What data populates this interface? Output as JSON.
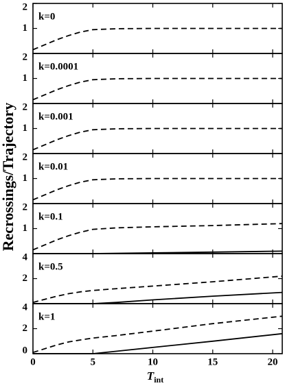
{
  "ylabel": "Recrossings/Trajectory",
  "xlabel": {
    "main": "T",
    "sub": "int"
  },
  "xlim": [
    0,
    20.8
  ],
  "xticks": [
    0,
    5,
    10,
    15,
    20
  ],
  "chart_data": [
    {
      "type": "line",
      "title": "k=0",
      "ylim": [
        0,
        2
      ],
      "yticks": [
        1,
        2
      ],
      "series": [
        {
          "style": "dashed",
          "color": "#000000",
          "x": [
            0,
            1,
            2,
            3,
            4,
            5,
            7,
            10,
            15,
            20.8
          ],
          "values": [
            0.15,
            0.35,
            0.55,
            0.72,
            0.86,
            0.95,
            0.99,
            1.0,
            1.0,
            1.0
          ]
        }
      ]
    },
    {
      "type": "line",
      "title": "k=0.0001",
      "ylim": [
        0,
        2
      ],
      "yticks": [
        1,
        2
      ],
      "series": [
        {
          "style": "dashed",
          "color": "#000000",
          "x": [
            0,
            1,
            2,
            3,
            4,
            5,
            7,
            10,
            15,
            20.8
          ],
          "values": [
            0.15,
            0.35,
            0.55,
            0.72,
            0.86,
            0.95,
            0.99,
            1.0,
            1.0,
            1.0
          ]
        }
      ]
    },
    {
      "type": "line",
      "title": "k=0.001",
      "ylim": [
        0,
        2
      ],
      "yticks": [
        1,
        2
      ],
      "series": [
        {
          "style": "dashed",
          "color": "#000000",
          "x": [
            0,
            1,
            2,
            3,
            4,
            5,
            7,
            10,
            15,
            20.8
          ],
          "values": [
            0.15,
            0.35,
            0.55,
            0.72,
            0.86,
            0.95,
            0.99,
            1.0,
            1.0,
            1.0
          ]
        }
      ]
    },
    {
      "type": "line",
      "title": "k=0.01",
      "ylim": [
        0,
        2
      ],
      "yticks": [
        1,
        2
      ],
      "series": [
        {
          "style": "dashed",
          "color": "#000000",
          "x": [
            0,
            1,
            2,
            3,
            4,
            5,
            7,
            10,
            15,
            20.8
          ],
          "values": [
            0.15,
            0.35,
            0.55,
            0.72,
            0.86,
            0.95,
            0.99,
            1.0,
            1.0,
            1.0
          ]
        }
      ]
    },
    {
      "type": "line",
      "title": "k=0.1",
      "ylim": [
        0,
        2
      ],
      "yticks": [
        1,
        2
      ],
      "series": [
        {
          "style": "dashed",
          "color": "#000000",
          "x": [
            0,
            1,
            2,
            3,
            4,
            5,
            7,
            10,
            15,
            20.8
          ],
          "values": [
            0.15,
            0.35,
            0.55,
            0.72,
            0.86,
            0.97,
            1.03,
            1.07,
            1.12,
            1.2
          ]
        },
        {
          "style": "solid",
          "color": "#000000",
          "x": [
            0,
            5,
            10,
            15,
            20.8
          ],
          "values": [
            0,
            0,
            0.03,
            0.06,
            0.1
          ]
        }
      ]
    },
    {
      "type": "line",
      "title": "k=0.5",
      "ylim": [
        0,
        4
      ],
      "yticks": [
        2,
        4
      ],
      "series": [
        {
          "style": "dashed",
          "color": "#000000",
          "x": [
            0,
            1,
            2,
            3,
            4,
            5,
            7,
            10,
            15,
            20.8
          ],
          "values": [
            0.1,
            0.35,
            0.6,
            0.8,
            0.95,
            1.05,
            1.2,
            1.4,
            1.75,
            2.2
          ]
        },
        {
          "style": "solid",
          "color": "#000000",
          "x": [
            0,
            5,
            7,
            10,
            15,
            20.8
          ],
          "values": [
            0,
            0,
            0.1,
            0.3,
            0.6,
            0.9
          ]
        }
      ]
    },
    {
      "type": "line",
      "title": "k=1",
      "ylim": [
        0,
        4
      ],
      "yticks": [
        0,
        2,
        4
      ],
      "series": [
        {
          "style": "dashed",
          "color": "#000000",
          "x": [
            0,
            1,
            2,
            3,
            4,
            5,
            7,
            10,
            15,
            20.8
          ],
          "values": [
            0.1,
            0.4,
            0.7,
            0.95,
            1.1,
            1.25,
            1.45,
            1.8,
            2.4,
            3.0
          ]
        },
        {
          "style": "solid",
          "color": "#000000",
          "x": [
            0,
            5,
            7,
            10,
            15,
            20.8
          ],
          "values": [
            0,
            0,
            0.2,
            0.5,
            1.0,
            1.6
          ]
        }
      ]
    }
  ]
}
